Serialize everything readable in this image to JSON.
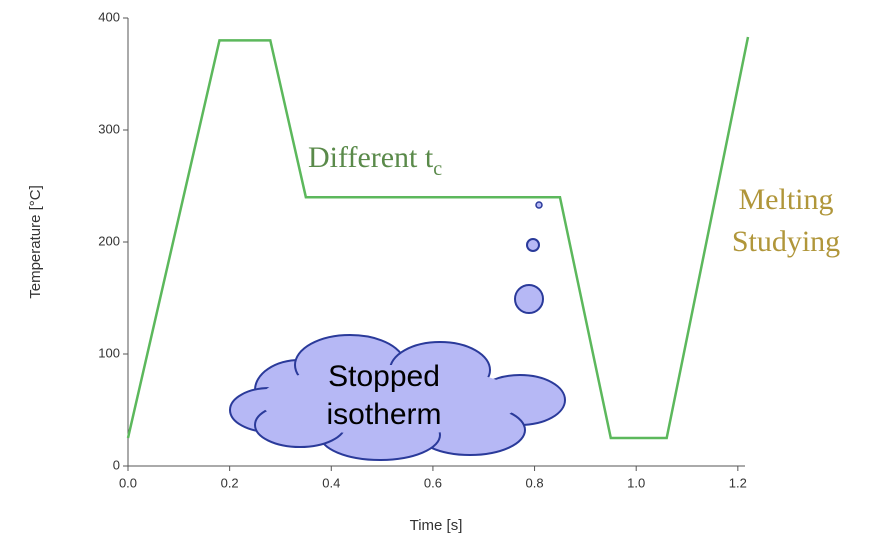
{
  "chart_data": {
    "type": "line",
    "x_label": "Time [s]",
    "y_label": "Temperature [°C]",
    "x": [
      0,
      0.18,
      0.28,
      0.35,
      0.85,
      0.95,
      1.06,
      1.22
    ],
    "series": [
      {
        "color": "#5cb85c",
        "values": [
          25,
          380,
          380,
          240,
          240,
          25,
          25,
          383
        ]
      }
    ],
    "xlim": [
      0,
      1.22
    ],
    "ylim": [
      0,
      400
    ],
    "xticks": [
      {
        "value": 0,
        "label": "0.0"
      },
      0.2,
      0.4,
      0.6,
      0.8,
      {
        "value": 1,
        "label": "1.0"
      },
      1.2
    ],
    "yticks": [
      0,
      100,
      200,
      300,
      400
    ],
    "annotations": {
      "different": {
        "text": "Different t",
        "subscript": "c",
        "color": "#5a8a4a"
      },
      "melting": {
        "lines": [
          "Melting",
          "Studying"
        ],
        "color": "#b0963a"
      },
      "cloud": {
        "lines": [
          "Stopped",
          "isotherm"
        ]
      }
    }
  }
}
